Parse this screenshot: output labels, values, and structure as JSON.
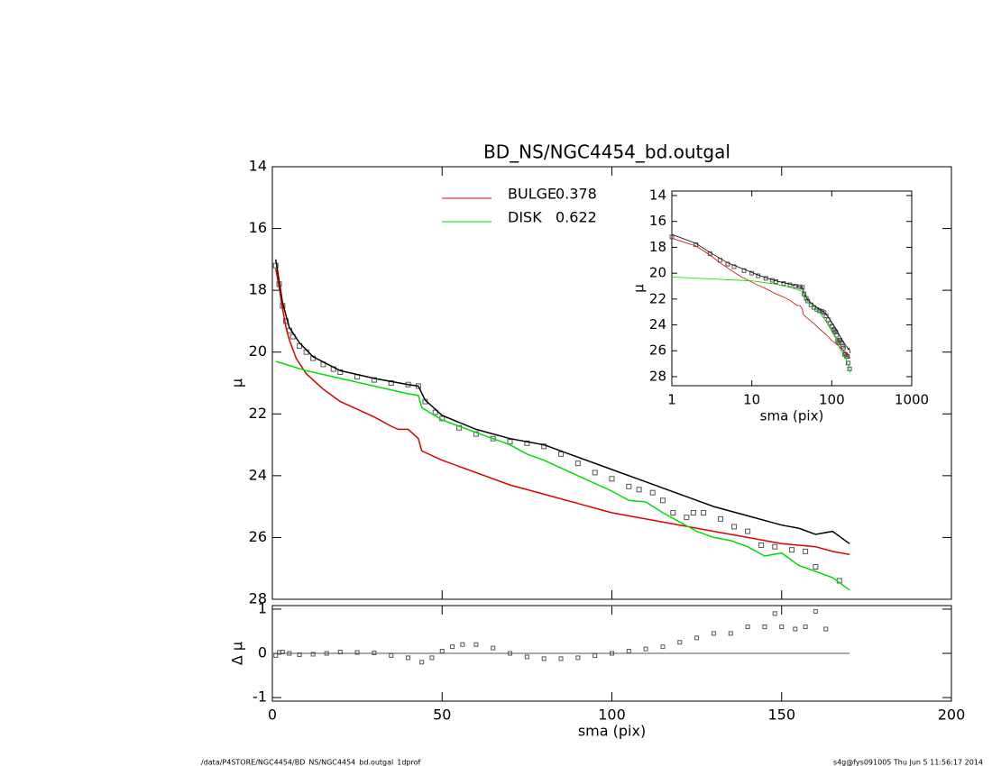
{
  "chart_data": [
    {
      "type": "line",
      "title": "BD_NS/NGC4454_bd.outgal",
      "ylabel": "μ",
      "xlim": [
        0,
        200
      ],
      "ylim": [
        14,
        28
      ],
      "y_inverted": true,
      "xticks": [
        0,
        50,
        100,
        150,
        200
      ],
      "yticks": [
        14,
        16,
        18,
        20,
        22,
        24,
        26,
        28
      ],
      "series": [
        {
          "style": "square",
          "color": "#555555",
          "x": [
            1,
            2,
            3,
            4,
            5,
            6,
            8,
            10,
            12,
            15,
            18,
            20,
            25,
            30,
            35,
            40,
            43,
            45,
            48,
            50,
            55,
            60,
            65,
            70,
            75,
            80,
            85,
            90,
            95,
            100,
            105,
            108,
            112,
            115,
            118,
            122,
            124,
            127,
            132,
            136,
            140,
            144,
            148,
            153,
            157,
            160,
            167
          ],
          "values": [
            17.2,
            17.8,
            18.5,
            19.0,
            19.3,
            19.5,
            19.8,
            20.0,
            20.2,
            20.4,
            20.55,
            20.65,
            20.8,
            20.9,
            21.0,
            21.05,
            21.1,
            21.6,
            21.95,
            22.15,
            22.45,
            22.65,
            22.8,
            22.9,
            22.95,
            23.05,
            23.3,
            23.6,
            23.9,
            24.1,
            24.35,
            24.45,
            24.55,
            24.8,
            25.2,
            25.35,
            25.2,
            25.2,
            25.4,
            25.65,
            25.8,
            26.25,
            26.3,
            26.4,
            26.45,
            26.95,
            27.4
          ]
        },
        {
          "style": "line",
          "color": "#000000",
          "x": [
            1,
            2,
            3,
            5,
            8,
            12,
            20,
            30,
            40,
            43,
            45,
            50,
            60,
            70,
            80,
            90,
            100,
            110,
            120,
            130,
            140,
            150,
            155,
            160,
            165,
            170
          ],
          "values": [
            17.0,
            17.7,
            18.4,
            19.2,
            19.7,
            20.15,
            20.6,
            20.85,
            21.05,
            21.1,
            21.55,
            22.05,
            22.5,
            22.8,
            23.0,
            23.4,
            23.8,
            24.2,
            24.6,
            25.0,
            25.3,
            25.6,
            25.7,
            25.9,
            25.8,
            26.2
          ]
        },
        {
          "name": "BULGE",
          "fraction": 0.378,
          "style": "line",
          "color": "#dd0000",
          "x": [
            1,
            2,
            3,
            4,
            5,
            7,
            10,
            15,
            20,
            25,
            30,
            35,
            37,
            40,
            43,
            44,
            50,
            60,
            70,
            80,
            90,
            100,
            110,
            120,
            130,
            140,
            150,
            160,
            165,
            170
          ],
          "values": [
            17.3,
            17.9,
            18.6,
            19.2,
            19.6,
            20.2,
            20.7,
            21.2,
            21.6,
            21.85,
            22.1,
            22.4,
            22.5,
            22.5,
            22.8,
            23.2,
            23.5,
            23.9,
            24.3,
            24.6,
            24.9,
            25.2,
            25.4,
            25.6,
            25.8,
            26.0,
            26.2,
            26.3,
            26.45,
            26.55
          ]
        },
        {
          "name": "DISK",
          "fraction": 0.622,
          "style": "line",
          "color": "#00dd00",
          "x": [
            1,
            10,
            20,
            30,
            40,
            43,
            44,
            50,
            60,
            70,
            75,
            80,
            90,
            100,
            105,
            110,
            115,
            120,
            125,
            130,
            135,
            140,
            145,
            150,
            155,
            160,
            165,
            170
          ],
          "values": [
            20.3,
            20.6,
            20.85,
            21.1,
            21.35,
            21.4,
            21.8,
            22.2,
            22.6,
            23.0,
            23.3,
            23.5,
            24.0,
            24.5,
            24.8,
            24.85,
            25.2,
            25.5,
            25.8,
            26.0,
            26.1,
            26.3,
            26.6,
            26.5,
            26.9,
            27.1,
            27.3,
            27.7
          ]
        }
      ]
    },
    {
      "type": "line",
      "log_x": true,
      "xlabel": "sma (pix)",
      "ylabel": "μ",
      "xlim": [
        1,
        1000
      ],
      "ylim": [
        13.65,
        28.7
      ],
      "y_inverted": true,
      "xticks": [
        1,
        10,
        100,
        1000
      ],
      "yticks": [
        14,
        16,
        18,
        20,
        22,
        24,
        26,
        28
      ]
    },
    {
      "type": "scatter",
      "xlabel": "sma (pix)",
      "ylabel": "Δ μ",
      "xlim": [
        0,
        200
      ],
      "ylim": [
        -1.08,
        1.08
      ],
      "xticks": [
        0,
        50,
        100,
        150,
        200
      ],
      "yticks": [
        1,
        0,
        -1
      ],
      "series": [
        {
          "style": "line",
          "color": "#555555",
          "x": [
            0,
            170
          ],
          "values": [
            0,
            0
          ]
        },
        {
          "style": "square",
          "color": "#555555",
          "x": [
            1,
            2,
            3,
            5,
            8,
            12,
            16,
            20,
            25,
            30,
            35,
            40,
            44,
            47,
            50,
            53,
            56,
            60,
            65,
            70,
            75,
            80,
            85,
            90,
            95,
            100,
            105,
            110,
            115,
            120,
            125,
            130,
            135,
            140,
            145,
            148,
            150,
            154,
            157,
            160,
            163
          ],
          "values": [
            -0.05,
            0.02,
            0.03,
            0.0,
            -0.03,
            -0.02,
            0.0,
            0.03,
            0.02,
            0.01,
            -0.05,
            -0.1,
            -0.2,
            -0.1,
            0.05,
            0.15,
            0.2,
            0.2,
            0.12,
            0.0,
            -0.08,
            -0.12,
            -0.12,
            -0.1,
            -0.05,
            0.0,
            0.05,
            0.1,
            0.15,
            0.25,
            0.35,
            0.45,
            0.45,
            0.6,
            0.6,
            0.9,
            0.6,
            0.55,
            0.6,
            0.95,
            0.55
          ]
        }
      ]
    }
  ],
  "footer": {
    "path": "/data/P4STORE/NGC4454/BD_NS/NGC4454_bd.outgal_1dprof",
    "stamp": "s4g@fys091005  Thu Jun  5 11:56:17 2014"
  }
}
